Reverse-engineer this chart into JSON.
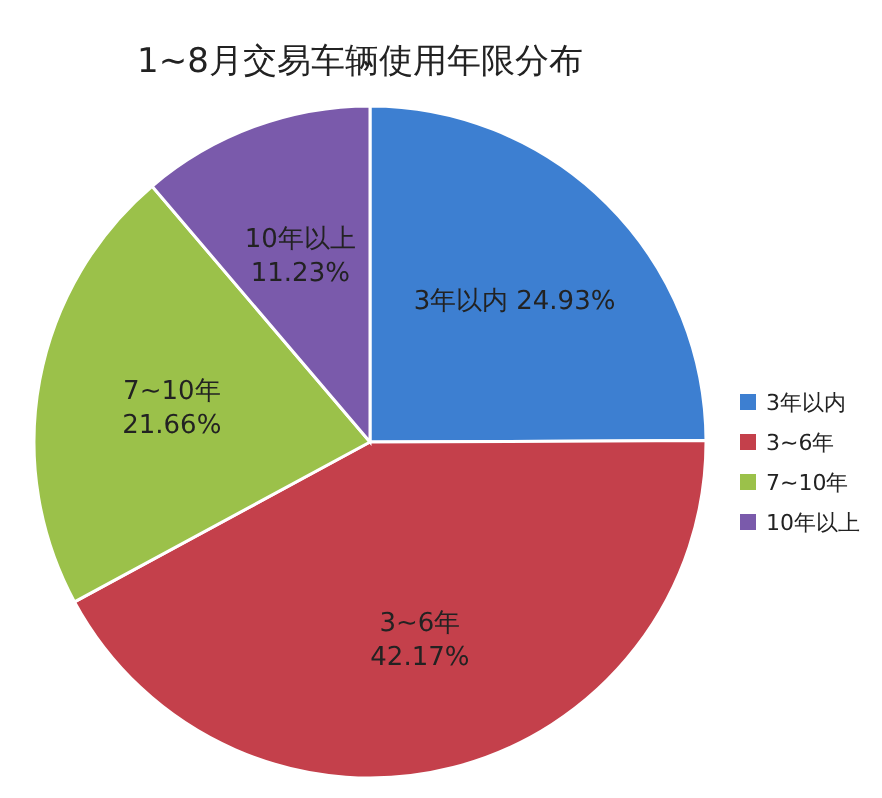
{
  "chart_data": {
    "type": "pie",
    "title": "1~8月交易车辆使用年限分布",
    "categories": [
      "3年以内",
      "3~6年",
      "7~10年",
      "10年以上"
    ],
    "values": [
      24.93,
      42.17,
      21.66,
      11.23
    ],
    "colors": [
      "#3d7fd1",
      "#c4404b",
      "#9bc14a",
      "#7a5aab"
    ],
    "value_labels": [
      "24.93%",
      "42.17%",
      "21.66%",
      "11.23%"
    ],
    "legend": "right"
  }
}
